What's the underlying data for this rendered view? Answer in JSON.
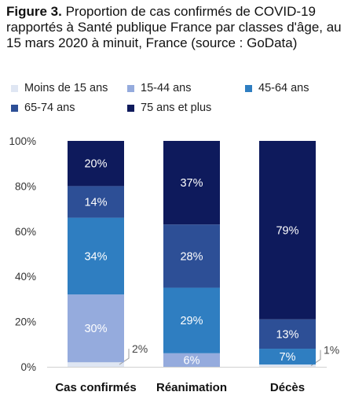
{
  "title": {
    "prefix": "Figure 3.",
    "text": " Proportion de cas confirmés de COVID-19 rapportés à Santé publique France par classes d'âge, au 15 mars 2020 à minuit, France (source : GoData)"
  },
  "colors": {
    "Moins de 15 ans": "#dfe6f3",
    "15-44 ans": "#95abdd",
    "45-64 ans": "#2f7ec1",
    "65-74 ans": "#2d4f96",
    "75 ans et plus": "#0e1a5c"
  },
  "chart_data": {
    "type": "bar",
    "stacked": true,
    "categories": [
      "Cas confirmés",
      "Réanimation",
      "Décès"
    ],
    "series": [
      {
        "name": "Moins de 15 ans",
        "values": [
          2,
          0,
          1
        ],
        "labels": [
          "2%",
          "",
          "1%"
        ]
      },
      {
        "name": "15-44 ans",
        "values": [
          30,
          6,
          0
        ],
        "labels": [
          "30%",
          "6%",
          ""
        ]
      },
      {
        "name": "45-64 ans",
        "values": [
          34,
          29,
          7
        ],
        "labels": [
          "34%",
          "29%",
          "7%"
        ]
      },
      {
        "name": "65-74 ans",
        "values": [
          14,
          28,
          13
        ],
        "labels": [
          "14%",
          "28%",
          "13%"
        ]
      },
      {
        "name": "75 ans et plus",
        "values": [
          20,
          37,
          79
        ],
        "labels": [
          "20%",
          "37%",
          "79%"
        ]
      }
    ],
    "yticks": [
      "0%",
      "20%",
      "40%",
      "60%",
      "80%",
      "100%"
    ],
    "ylim": [
      0,
      100
    ],
    "grid": false,
    "legend_position": "top"
  }
}
